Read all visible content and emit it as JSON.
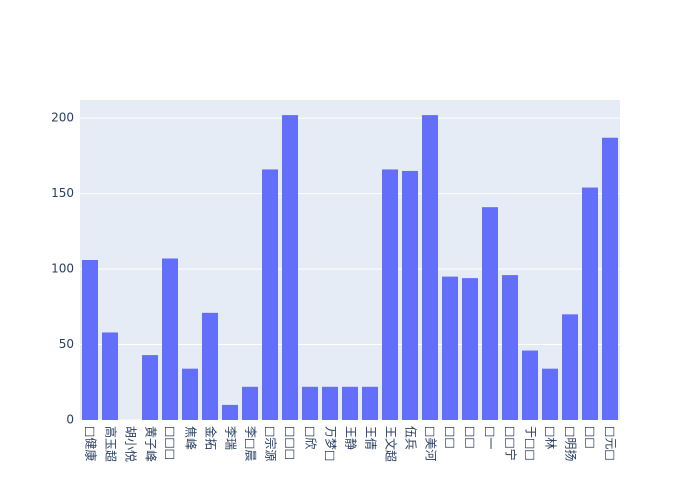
{
  "chart_data": {
    "type": "bar",
    "categories": [
      "□健康",
      "高玉超",
      "胡小悦",
      "黄子峰",
      "□□□",
      "焦峰",
      "金拓",
      "李瑞",
      "李□晨",
      "□宗源",
      "□□□",
      "□欣",
      "万梦□",
      "王静",
      "王倩",
      "王文超",
      "伍兵",
      "□美河",
      "□□",
      "□□",
      "□一",
      "□□宁",
      "于□□",
      "□林",
      "□明扬",
      "□□",
      "□元□"
    ],
    "values": [
      106,
      58,
      0,
      43,
      107,
      34,
      71,
      10,
      22,
      166,
      202,
      22,
      22,
      22,
      22,
      166,
      165,
      202,
      95,
      94,
      141,
      96,
      46,
      34,
      70,
      154,
      187
    ],
    "color": "#636efa",
    "ylim": [
      0,
      212
    ],
    "yticks": [
      0,
      50,
      100,
      150,
      200
    ],
    "grid": true
  }
}
